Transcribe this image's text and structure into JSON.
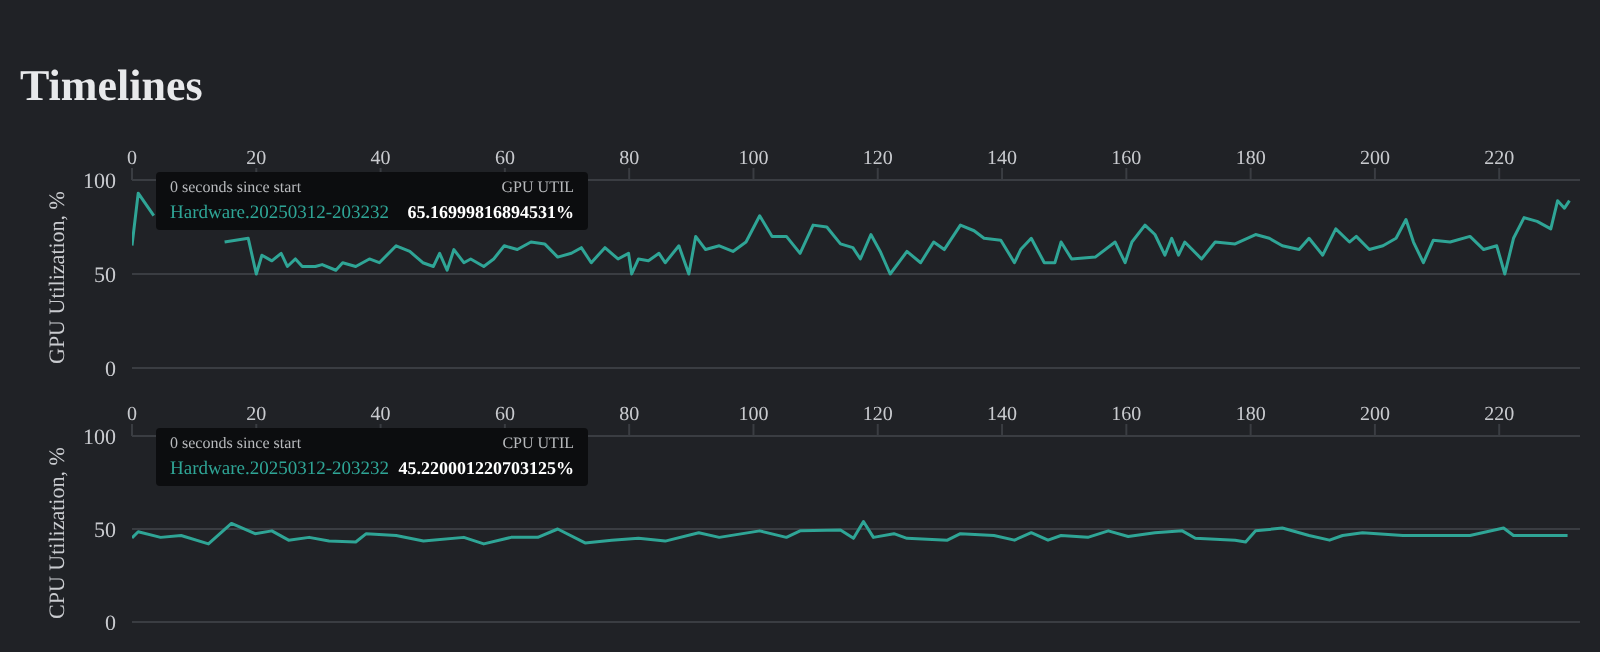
{
  "chart_data": [
    {
      "type": "line",
      "title": "Timelines",
      "ylabel": "GPU Utilization, %",
      "xlim": [
        0,
        233
      ],
      "xticks": [
        0,
        20,
        40,
        60,
        80,
        100,
        120,
        140,
        160,
        180,
        200,
        220
      ],
      "ylim": [
        0,
        100
      ],
      "yticks": [
        0,
        50,
        100
      ],
      "grid": "y",
      "marker": "none",
      "line_style": "solid",
      "annotations": [
        "0 seconds since start",
        "GPU UTIL",
        "Hardware.20250312-203232",
        "65.16999816894531%"
      ],
      "x": [
        0,
        1,
        3.5,
        8,
        13.3,
        14.9,
        18.7,
        20,
        20.9,
        22.5,
        24,
        25,
        26.3,
        27.4,
        29.5,
        30.6,
        32.8,
        33.9,
        36,
        38.2,
        39.8,
        42.5,
        44.7,
        46.8,
        48.5,
        49.5,
        50.7,
        51.8,
        53.4,
        54.5,
        56.6,
        58.2,
        59.9,
        62,
        64.2,
        66.4,
        68.5,
        70.7,
        72.3,
        73.9,
        76.1,
        78.2,
        79.9,
        80.4,
        81.5,
        83.1,
        84.8,
        85.8,
        88,
        89.6,
        90.7,
        92.3,
        94.5,
        96.7,
        98.8,
        101,
        103,
        105.3,
        107.5,
        109.6,
        111.8,
        114,
        116,
        117.2,
        118.9,
        120.4,
        122,
        124.7,
        126.9,
        129,
        130.7,
        133.3,
        135.5,
        137.1,
        139.8,
        142,
        143,
        144.7,
        146.8,
        148.5,
        149.5,
        151.2,
        155,
        158.2,
        159.8,
        160.9,
        163,
        164.6,
        166.2,
        167.3,
        168.4,
        169.4,
        172.1,
        174.3,
        177.5,
        180.8,
        183,
        185.1,
        187.8,
        189.4,
        191.6,
        193.7,
        195.9,
        197,
        199.1,
        201.3,
        203.4,
        205,
        206.2,
        207.8,
        209.4,
        212.1,
        215.3,
        217.5,
        219.6,
        220.9,
        222.3,
        224,
        226.1,
        228.3,
        229.4,
        230.5,
        231.3
      ],
      "series": [
        {
          "color": "#2fa596",
          "values": [
            65.16999816894531,
            93,
            81,
            null,
            null,
            67,
            69,
            50,
            60,
            57,
            61,
            54,
            58,
            54,
            54,
            55,
            52,
            56,
            54,
            58,
            56,
            65,
            62,
            56,
            54,
            61,
            52,
            63,
            56,
            58,
            54,
            58,
            65,
            63,
            67,
            66,
            59,
            61,
            64,
            56,
            64,
            58,
            61,
            50,
            58,
            57,
            61,
            56,
            65,
            50,
            70,
            63,
            65,
            62,
            67,
            81,
            70,
            70,
            61,
            76,
            75,
            66,
            64,
            58,
            71,
            62,
            50,
            62,
            56,
            67,
            63,
            76,
            73,
            69,
            68,
            56,
            63,
            69,
            56,
            56,
            67,
            58,
            59,
            67,
            56,
            67,
            76,
            71,
            60,
            69,
            60,
            67,
            58,
            67,
            66,
            71,
            69,
            65,
            63,
            69,
            60,
            74,
            67,
            70,
            63,
            65,
            69,
            79,
            67,
            56,
            68,
            67,
            70,
            63,
            65,
            50,
            69,
            80,
            78,
            74,
            89,
            85,
            89
          ]
        }
      ]
    },
    {
      "type": "line",
      "ylabel": "CPU Utilization, %",
      "xlim": [
        0,
        233
      ],
      "xticks": [
        0,
        20,
        40,
        60,
        80,
        100,
        120,
        140,
        160,
        180,
        200,
        220
      ],
      "ylim": [
        0,
        100
      ],
      "yticks": [
        0,
        50,
        100
      ],
      "grid": "y",
      "marker": "none",
      "line_style": "solid",
      "annotations": [
        "0 seconds since start",
        "CPU UTIL",
        "Hardware.20250312-203232",
        "45.220001220703125%"
      ],
      "x": [
        0,
        1,
        4.6,
        7.9,
        12.3,
        16,
        19.8,
        22.5,
        25.2,
        28.5,
        31.7,
        36,
        37.7,
        42.5,
        46.9,
        53.4,
        56.6,
        61,
        65.3,
        68.5,
        72.9,
        77.2,
        81.5,
        85.8,
        91.2,
        94.5,
        101,
        105.3,
        107.5,
        114,
        116.1,
        117.7,
        119.3,
        122.6,
        124.7,
        131.2,
        133.3,
        138.7,
        142,
        144.7,
        147.4,
        149.5,
        153.8,
        157.1,
        160.3,
        164.6,
        169,
        171.1,
        177.5,
        179.2,
        180.8,
        185.1,
        189.4,
        192.7,
        194.8,
        198,
        204.5,
        211,
        215.3,
        220.7,
        222.3,
        228.3,
        231
      ],
      "series": [
        {
          "color": "#2fa596",
          "values": [
            45.220001220703125,
            48.5,
            45.5,
            46.5,
            42,
            53,
            47.5,
            49,
            44,
            45.5,
            43.5,
            43,
            47.5,
            46.5,
            43.5,
            45.5,
            42,
            45.5,
            45.5,
            50,
            42.5,
            44,
            45,
            43.5,
            48,
            45.5,
            49,
            45.5,
            49,
            49.5,
            45,
            54,
            45.5,
            47.5,
            45,
            44,
            47.5,
            46.5,
            44,
            48,
            44,
            46.5,
            45.5,
            49,
            46,
            48,
            49,
            45,
            44,
            43,
            49,
            50.5,
            46.5,
            44,
            46.5,
            48,
            46.5,
            46.5,
            46.5,
            50.5,
            46.5,
            46.5,
            46.5
          ]
        }
      ]
    }
  ]
}
